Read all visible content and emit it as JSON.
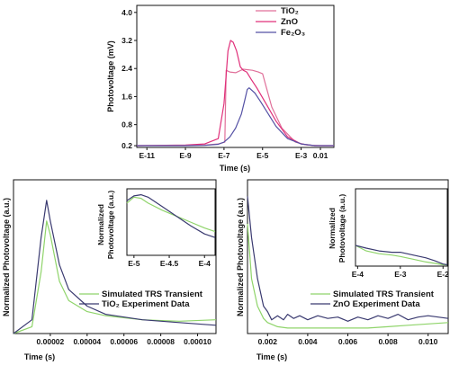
{
  "chart_data": [
    {
      "type": "line",
      "id": "top",
      "xscale": "log",
      "xlabel": "Time (s)",
      "ylabel": "Photovoltage (mV)",
      "xlim": [
        3e-12,
        0.05
      ],
      "ylim": [
        0.15,
        4.2
      ],
      "xticks": [
        1e-11,
        1e-09,
        1e-07,
        1e-05,
        0.001,
        0.01
      ],
      "xtick_labels": [
        "E-11",
        "E-9",
        "E-7",
        "E-5",
        "E-3",
        "0.01"
      ],
      "yticks": [
        0.2,
        0.8,
        1.6,
        2.4,
        3.2,
        4.0
      ],
      "ytick_labels": [
        "0.2",
        "0.8",
        "1.6",
        "2.4",
        "3.2",
        "4.0"
      ],
      "legend": "top-right",
      "series": [
        {
          "name": "TiO₂",
          "color": "#e0709a",
          "x": [
            3e-12,
            1e-09,
            1e-08,
            5e-08,
            1.1e-07,
            1.3e-07,
            2e-07,
            4e-07,
            1e-06,
            3e-06,
            6e-06,
            1e-05,
            1.5e-05,
            3e-05,
            0.0001,
            0.0005,
            0.002,
            0.01,
            0.05
          ],
          "y": [
            0.2,
            0.21,
            0.22,
            0.25,
            0.3,
            2.35,
            2.3,
            2.28,
            2.38,
            2.35,
            2.3,
            2.25,
            1.9,
            1.3,
            0.7,
            0.3,
            0.22,
            0.2,
            0.2
          ]
        },
        {
          "name": "ZnO",
          "color": "#e0307a",
          "x": [
            3e-12,
            1e-09,
            1e-08,
            5e-08,
            1e-07,
            1.6e-07,
            2.2e-07,
            3e-07,
            4.5e-07,
            7e-07,
            1e-06,
            1.5e-06,
            2.5e-06,
            5e-06,
            1.5e-05,
            5e-05,
            0.0002,
            0.001,
            0.005,
            0.05
          ],
          "y": [
            0.2,
            0.22,
            0.25,
            0.4,
            1.4,
            2.9,
            3.2,
            3.15,
            2.9,
            2.45,
            2.35,
            2.3,
            2.1,
            1.85,
            1.4,
            0.9,
            0.45,
            0.25,
            0.2,
            0.2
          ]
        },
        {
          "name": "Fe₂O₃",
          "color": "#5552a5",
          "x": [
            3e-12,
            1e-09,
            1e-08,
            5e-08,
            1e-07,
            2e-07,
            4e-07,
            8e-07,
            1.2e-06,
            1.6e-06,
            2e-06,
            4e-06,
            8e-06,
            2e-05,
            5e-05,
            0.0002,
            0.001,
            0.005,
            0.05
          ],
          "y": [
            0.2,
            0.2,
            0.21,
            0.24,
            0.3,
            0.45,
            0.7,
            1.1,
            1.5,
            1.8,
            1.85,
            1.7,
            1.45,
            1.1,
            0.75,
            0.4,
            0.25,
            0.2,
            0.2
          ]
        }
      ]
    },
    {
      "type": "line",
      "id": "bottom-left",
      "xlabel": "Time (s)",
      "ylabel": "Normalized Photovoltage (a.u.)",
      "xlim": [
        0,
        0.00011
      ],
      "ylim": [
        0,
        1.12
      ],
      "xticks": [
        2e-05,
        4e-05,
        6e-05,
        8e-05,
        0.0001
      ],
      "xtick_labels": [
        "0.00002",
        "0.00004",
        "0.00006",
        "0.00008",
        "0.00010"
      ],
      "legend": "bottom-right",
      "series": [
        {
          "name": "Simulated TRS Transient",
          "color": "#8fd46a",
          "x": [
            0,
            1e-05,
            1.5e-05,
            1.8e-05,
            2e-05,
            2.5e-05,
            3e-05,
            4e-05,
            5e-05,
            7e-05,
            9e-05,
            0.00011
          ],
          "y": [
            0,
            0.05,
            0.45,
            0.82,
            0.72,
            0.38,
            0.24,
            0.16,
            0.13,
            0.1,
            0.09,
            0.1
          ]
        },
        {
          "name": "TiO₂ Experiment Data",
          "color": "#3a3a70",
          "x": [
            0,
            1e-05,
            1.5e-05,
            1.8e-05,
            2e-05,
            2.5e-05,
            3e-05,
            4e-05,
            5e-05,
            7e-05,
            9e-05,
            0.00011
          ],
          "y": [
            0,
            0.1,
            0.7,
            0.97,
            0.82,
            0.5,
            0.32,
            0.2,
            0.14,
            0.1,
            0.08,
            0.06
          ]
        }
      ],
      "inset": {
        "xlim": [
          -5.1,
          -3.85
        ],
        "ylim": [
          0,
          1.12
        ],
        "xticks": [
          -5,
          -4.5,
          -4
        ],
        "xtick_labels": [
          "E-5",
          "E-4.5",
          "E-4"
        ],
        "ylabel": "Normalized Photovoltage (a.u.)",
        "series": [
          {
            "x": [
              -5.1,
              -5.0,
              -4.9,
              -4.8,
              -4.6,
              -4.4,
              -4.2,
              -4.0,
              -3.85
            ],
            "y": [
              0.88,
              0.98,
              0.96,
              0.88,
              0.76,
              0.66,
              0.56,
              0.46,
              0.4
            ]
          },
          {
            "x": [
              -5.1,
              -5.0,
              -4.9,
              -4.8,
              -4.6,
              -4.4,
              -4.2,
              -4.0,
              -3.85
            ],
            "y": [
              0.92,
              1.0,
              1.02,
              0.98,
              0.82,
              0.66,
              0.5,
              0.36,
              0.3
            ]
          }
        ]
      }
    },
    {
      "type": "line",
      "id": "bottom-right",
      "xlabel": "Time (s)",
      "ylabel": "Normalized Photovoltage (a.u.)",
      "xlim": [
        0.001,
        0.011
      ],
      "ylim": [
        0,
        1.12
      ],
      "xticks": [
        0.002,
        0.004,
        0.006,
        0.008,
        0.01
      ],
      "xtick_labels": [
        "0.002",
        "0.004",
        "0.006",
        "0.008",
        "0.010"
      ],
      "legend": "bottom-right",
      "series": [
        {
          "name": "Simulated TRS Transient",
          "color": "#8fd46a",
          "x": [
            0.001,
            0.0012,
            0.0015,
            0.0018,
            0.002,
            0.0025,
            0.003,
            0.004,
            0.005,
            0.006,
            0.007,
            0.008,
            0.009,
            0.01,
            0.011
          ],
          "y": [
            0.8,
            0.4,
            0.2,
            0.11,
            0.08,
            0.05,
            0.04,
            0.04,
            0.04,
            0.04,
            0.04,
            0.05,
            0.06,
            0.07,
            0.08
          ]
        },
        {
          "name": "ZnO Experiment Data",
          "color": "#3a3a70",
          "x": [
            0.001,
            0.0012,
            0.0015,
            0.0018,
            0.002,
            0.0022,
            0.0025,
            0.0028,
            0.003,
            0.0033,
            0.0036,
            0.004,
            0.0045,
            0.005,
            0.0055,
            0.006,
            0.0065,
            0.007,
            0.0075,
            0.008,
            0.0085,
            0.009,
            0.0095,
            0.01,
            0.011
          ],
          "y": [
            1.0,
            0.7,
            0.4,
            0.2,
            0.16,
            0.1,
            0.13,
            0.1,
            0.14,
            0.11,
            0.13,
            0.1,
            0.13,
            0.11,
            0.12,
            0.09,
            0.12,
            0.1,
            0.13,
            0.11,
            0.14,
            0.1,
            0.12,
            0.13,
            0.11
          ]
        }
      ],
      "inset": {
        "xlim": [
          -4.05,
          -1.9
        ],
        "ylim": [
          0,
          1.12
        ],
        "xticks": [
          -4,
          -3,
          -2
        ],
        "xtick_labels": [
          "E-4",
          "E-3",
          "E-2"
        ],
        "ylabel": "Normalized Photovoltage (a.u.)",
        "series": [
          {
            "x": [
              -4.05,
              -3.8,
              -3.5,
              -3.2,
              -3.0,
              -2.7,
              -2.4,
              -2.2,
              -2.0,
              -1.9
            ],
            "y": [
              0.3,
              0.22,
              0.18,
              0.16,
              0.14,
              0.1,
              0.06,
              0.04,
              0.02,
              0.02
            ]
          },
          {
            "x": [
              -4.05,
              -3.8,
              -3.5,
              -3.2,
              -3.0,
              -2.7,
              -2.4,
              -2.2,
              -2.0,
              -1.9
            ],
            "y": [
              0.3,
              0.26,
              0.22,
              0.2,
              0.2,
              0.16,
              0.12,
              0.08,
              0.03,
              0.02
            ]
          }
        ]
      }
    }
  ]
}
